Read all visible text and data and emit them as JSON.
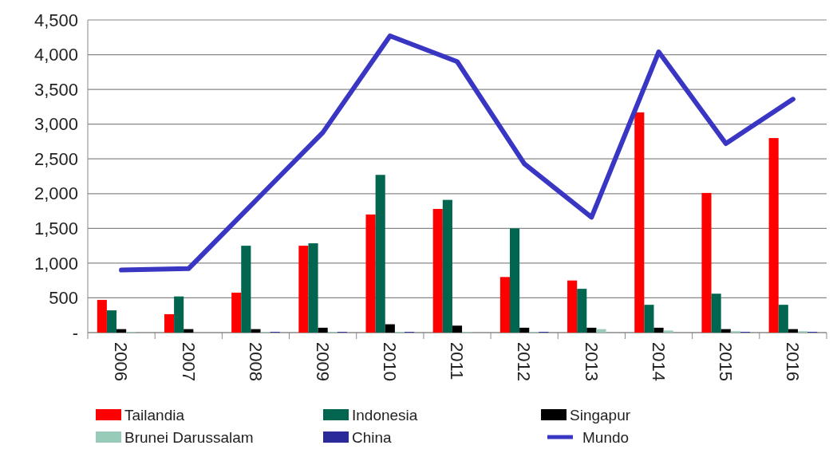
{
  "chart_data": {
    "type": "bar",
    "categories": [
      "2006",
      "2007",
      "2008",
      "2009",
      "2010",
      "2011",
      "2012",
      "2013",
      "2014",
      "2015",
      "2016"
    ],
    "series": [
      {
        "name": "Tailandia",
        "color": "#ff0000",
        "values": [
          470,
          265,
          575,
          1250,
          1700,
          1780,
          800,
          750,
          3170,
          2010,
          2800
        ]
      },
      {
        "name": "Indonesia",
        "color": "#006650",
        "values": [
          320,
          520,
          1250,
          1285,
          2270,
          1910,
          1500,
          630,
          400,
          560,
          400
        ]
      },
      {
        "name": "Singapur",
        "color": "#000000",
        "values": [
          50,
          50,
          50,
          70,
          120,
          100,
          70,
          70,
          70,
          50,
          50
        ]
      },
      {
        "name": "Brunei Darussalam",
        "color": "#99ccb8",
        "values": [
          10,
          null,
          10,
          10,
          10,
          10,
          10,
          50,
          30,
          20,
          20
        ]
      },
      {
        "name": "China",
        "color": "#2a2a9a",
        "values": [
          null,
          null,
          10,
          10,
          10,
          null,
          10,
          null,
          null,
          10,
          10
        ]
      },
      {
        "name": "Mundo",
        "type": "line",
        "color": "#3a36c4",
        "values": [
          900,
          920,
          1900,
          2880,
          4270,
          3900,
          2430,
          1660,
          4040,
          2720,
          3360
        ]
      }
    ],
    "ylim": [
      0,
      4500
    ],
    "yticks": [
      {
        "value": 0,
        "label": "-"
      },
      {
        "value": 500,
        "label": "500"
      },
      {
        "value": 1000,
        "label": "1,000"
      },
      {
        "value": 1500,
        "label": "1,500"
      },
      {
        "value": 2000,
        "label": "2,000"
      },
      {
        "value": 2500,
        "label": "2,500"
      },
      {
        "value": 3000,
        "label": "3,000"
      },
      {
        "value": 3500,
        "label": "3,500"
      },
      {
        "value": 4000,
        "label": "4,000"
      },
      {
        "value": 4500,
        "label": "4,500"
      }
    ],
    "grid": "y",
    "legend": "bottom"
  }
}
